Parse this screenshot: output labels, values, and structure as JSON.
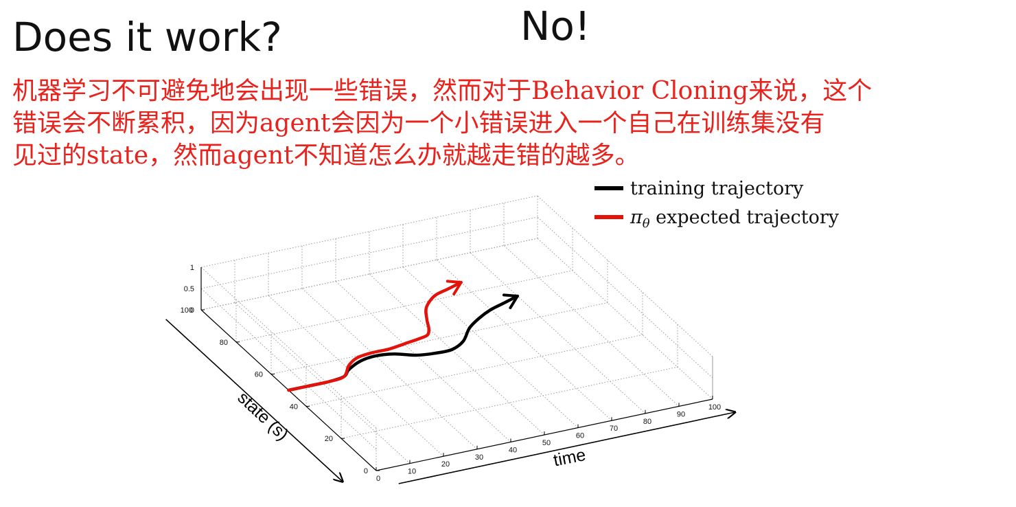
{
  "slide": {
    "title": "Does it work?",
    "answer": "No!",
    "explanation": "机器学习不可避免地会出现一些错误，然而对于Behavior Cloning来说，这个\n错误会不断累积，因为agent会因为一个小错误进入一个自己在训练集没有\n见过的state，然而agent不知道怎么办就越走错的越多。",
    "text_color": "#e8221c"
  },
  "chart_data": {
    "type": "line",
    "title": "",
    "xlabel": "time",
    "ylabel": "state (s)",
    "zlabel": "",
    "xlim": [
      0,
      100
    ],
    "ylim": [
      0,
      100
    ],
    "zlim": [
      0,
      1
    ],
    "x_ticks": [
      "0",
      "10",
      "20",
      "30",
      "40",
      "50",
      "60",
      "70",
      "80",
      "90",
      "100"
    ],
    "y_ticks": [
      "0",
      "20",
      "40",
      "60",
      "80",
      "100"
    ],
    "z_ticks": [
      "0",
      "0.5",
      "1"
    ],
    "grid": true,
    "legend_position": "top-right",
    "series": [
      {
        "name": "training trajectory",
        "color": "#000000",
        "points": [
          [
            0,
            50
          ],
          [
            6,
            50
          ],
          [
            12,
            50
          ],
          [
            17,
            51
          ],
          [
            20,
            54
          ],
          [
            25,
            57
          ],
          [
            30,
            58
          ],
          [
            35,
            57
          ],
          [
            40,
            54
          ],
          [
            45,
            53
          ],
          [
            50,
            53
          ],
          [
            55,
            56
          ],
          [
            60,
            62
          ],
          [
            65,
            66
          ],
          [
            70,
            69
          ],
          [
            75,
            71
          ],
          [
            80,
            73
          ]
        ]
      },
      {
        "name": "π_θ expected trajectory",
        "color": "#e3120b",
        "points": [
          [
            0,
            50
          ],
          [
            6,
            50
          ],
          [
            12,
            50
          ],
          [
            17,
            51
          ],
          [
            21,
            56
          ],
          [
            25,
            59
          ],
          [
            30,
            60
          ],
          [
            35,
            60
          ],
          [
            40,
            61
          ],
          [
            45,
            62
          ],
          [
            48,
            63
          ],
          [
            50,
            66
          ],
          [
            52,
            71
          ],
          [
            55,
            77
          ],
          [
            60,
            82
          ],
          [
            65,
            84
          ],
          [
            70,
            86
          ]
        ]
      }
    ]
  }
}
